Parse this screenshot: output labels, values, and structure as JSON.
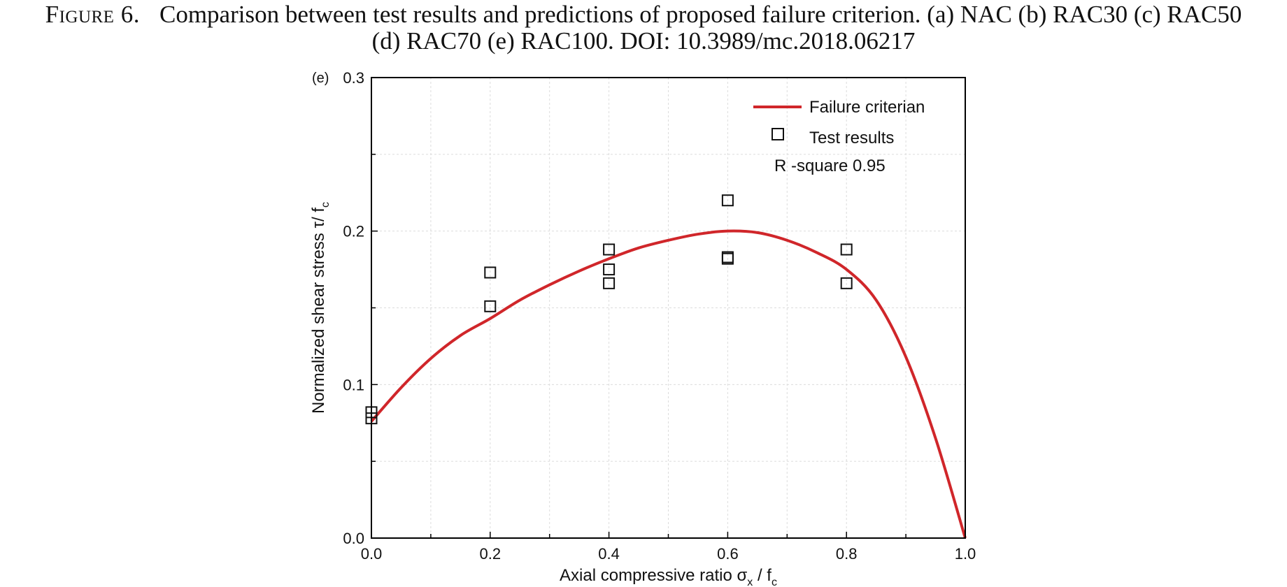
{
  "caption": {
    "label": "Figure 6.",
    "line1": "Comparison between test results and predictions of proposed failure criterion. (a) NAC (b) RAC30 (c) RAC50",
    "line2": "(d) RAC70 (e) RAC100. DOI: 10.3989/mc.2018.06217"
  },
  "chart_data": {
    "type": "scatter",
    "panel_label": "(e)",
    "xlabel": {
      "main": "Axial compressive ratio σ",
      "sub1": "x",
      "mid": " / f",
      "sub2": "c"
    },
    "ylabel": {
      "main": "Normalized shear stress τ/ f",
      "sub": "c"
    },
    "xlim": [
      0.0,
      1.0
    ],
    "ylim": [
      0.0,
      0.3
    ],
    "x_ticks": [
      "0.0",
      "0.2",
      "0.4",
      "0.6",
      "0.8",
      "1.0"
    ],
    "x_tick_values": [
      0.0,
      0.2,
      0.4,
      0.6,
      0.8,
      1.0
    ],
    "y_ticks": [
      "0.0",
      "0.1",
      "0.2",
      "0.3"
    ],
    "y_tick_values": [
      0.0,
      0.1,
      0.2,
      0.3
    ],
    "grid": true,
    "legend_position": "top-right",
    "series": [
      {
        "name": "Failure criterian",
        "kind": "line",
        "color": "#d0262a",
        "x": [
          0.0,
          0.05,
          0.1,
          0.15,
          0.2,
          0.25,
          0.3,
          0.35,
          0.4,
          0.45,
          0.5,
          0.55,
          0.6,
          0.65,
          0.7,
          0.75,
          0.8,
          0.85,
          0.9,
          0.95,
          1.0
        ],
        "y": [
          0.076,
          0.098,
          0.117,
          0.132,
          0.143,
          0.155,
          0.165,
          0.174,
          0.182,
          0.189,
          0.194,
          0.198,
          0.2,
          0.199,
          0.194,
          0.186,
          0.175,
          0.155,
          0.118,
          0.065,
          0.0
        ]
      },
      {
        "name": "Test results",
        "kind": "scatter",
        "marker": "open-square",
        "color": "#111111",
        "x": [
          0.0,
          0.0,
          0.2,
          0.2,
          0.4,
          0.4,
          0.4,
          0.6,
          0.6,
          0.6,
          0.8,
          0.8
        ],
        "y": [
          0.078,
          0.082,
          0.151,
          0.173,
          0.166,
          0.175,
          0.188,
          0.182,
          0.183,
          0.22,
          0.166,
          0.188
        ]
      }
    ],
    "annotation": "R -square 0.95"
  }
}
